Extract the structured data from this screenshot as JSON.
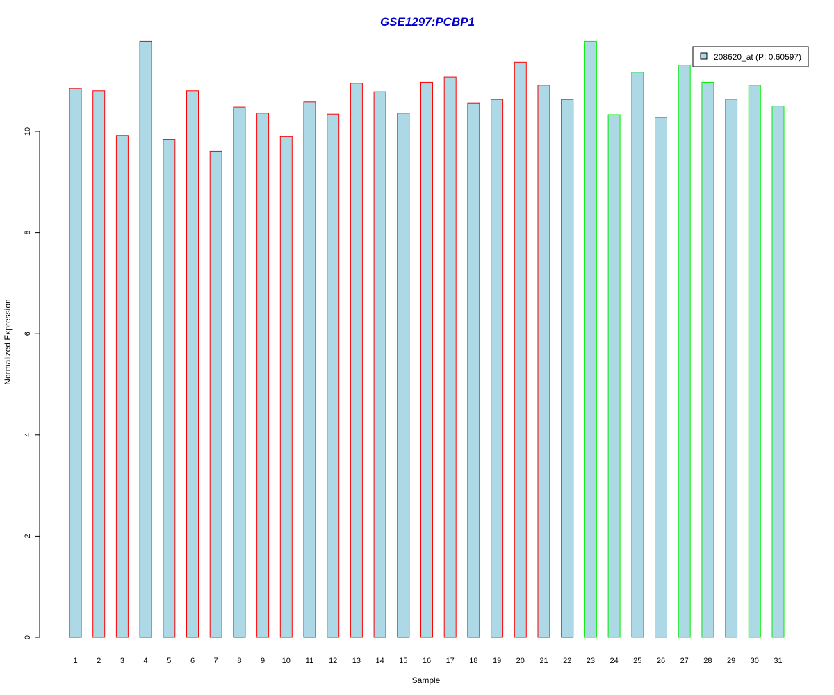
{
  "colors": {
    "title": "#0000cc",
    "bar_fill": "#add8e6",
    "border_group1": "#ff0000",
    "border_group2": "#00ee00",
    "axis": "#000000"
  },
  "chart_data": {
    "type": "bar",
    "title": "GSE1297:PCBP1",
    "xlabel": "Sample",
    "ylabel": "Normalized Expression",
    "categories": [
      "1",
      "2",
      "3",
      "4",
      "5",
      "6",
      "7",
      "8",
      "9",
      "10",
      "11",
      "12",
      "13",
      "14",
      "15",
      "16",
      "17",
      "18",
      "19",
      "20",
      "21",
      "22",
      "23",
      "24",
      "25",
      "26",
      "27",
      "28",
      "29",
      "30",
      "31"
    ],
    "series": [
      {
        "name": "208620_at (P: 0.60597)",
        "values": [
          10.85,
          10.8,
          9.92,
          11.78,
          9.84,
          10.8,
          9.61,
          10.48,
          10.36,
          9.9,
          10.58,
          10.34,
          10.95,
          10.78,
          10.36,
          10.97,
          11.07,
          10.56,
          10.63,
          11.37,
          10.91,
          10.63,
          11.78,
          10.33,
          11.17,
          10.27,
          11.31,
          10.97,
          10.63,
          10.91,
          10.5
        ]
      }
    ],
    "group_border": [
      "red",
      "red",
      "red",
      "red",
      "red",
      "red",
      "red",
      "red",
      "red",
      "red",
      "red",
      "red",
      "red",
      "red",
      "red",
      "red",
      "red",
      "red",
      "red",
      "red",
      "red",
      "red",
      "green",
      "green",
      "green",
      "green",
      "green",
      "green",
      "green",
      "green",
      "green"
    ],
    "yticks": [
      "0",
      "2",
      "4",
      "6",
      "8",
      "10"
    ],
    "ylim": [
      0,
      11.78
    ],
    "grid": false,
    "legend": {
      "position": "top-right",
      "entries": [
        "208620_at (P: 0.60597)"
      ]
    }
  }
}
